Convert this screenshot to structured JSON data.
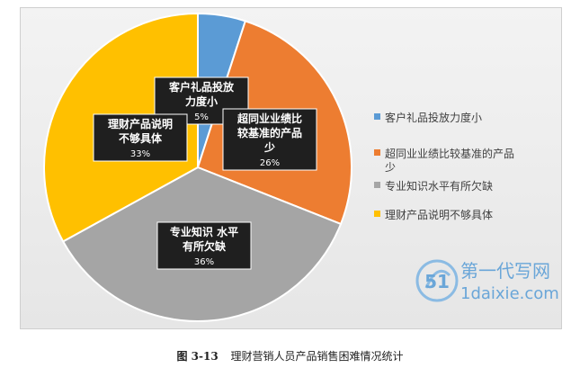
{
  "chart_data": {
    "type": "pie",
    "slices": [
      {
        "label": "客户礼品投放力度小",
        "value": 5,
        "pct_label": "5%",
        "color": "#5B9BD5",
        "label_lines": [
          "客户礼品投放",
          "力度小"
        ]
      },
      {
        "label": "超同业业绩比较基准的产品少",
        "value": 26,
        "pct_label": "26%",
        "color": "#ED7D31",
        "label_lines": [
          "超同业业绩比",
          "较基准的产品",
          "少"
        ]
      },
      {
        "label": "专业知识水平有所欠缺",
        "value": 36,
        "pct_label": "36%",
        "color": "#A5A5A5",
        "label_lines": [
          "专业知识 水平",
          "有所欠缺"
        ]
      },
      {
        "label": "理财产品说明不够具体",
        "value": 33,
        "pct_label": "33%",
        "color": "#FFC000",
        "label_lines": [
          "理财产品说明",
          "不够具体"
        ]
      }
    ],
    "legend_position": "right",
    "legend": [
      {
        "lines": [
          "客户礼品投放力度小"
        ]
      },
      {
        "lines": [
          "超同业业绩比较基准的产品",
          "少"
        ]
      },
      {
        "lines": [
          "专业知识水平有所欠缺"
        ]
      },
      {
        "lines": [
          "理财产品说明不够具体"
        ]
      }
    ]
  },
  "caption": {
    "figure_number": "图 3-13",
    "text": "理财营销人员产品销售困难情况统计"
  },
  "watermark": {
    "brand": "第一代写网",
    "url": "1daixie.com",
    "logo_text": "51"
  }
}
